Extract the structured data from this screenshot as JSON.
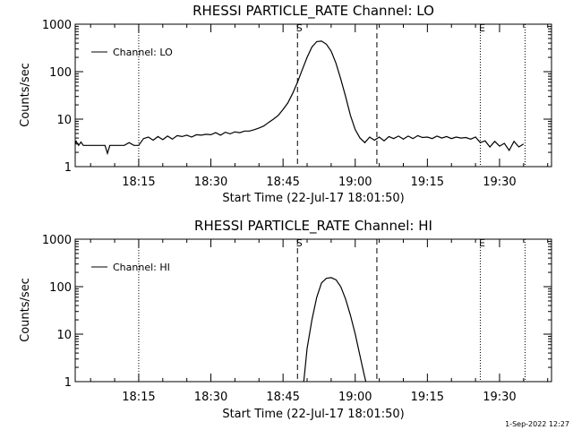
{
  "chart_data": [
    {
      "type": "line",
      "title": "RHESSI PARTICLE_RATE Channel: LO",
      "xlabel": "Start Time (22-Jul-17 18:01:50)",
      "ylabel": "Counts/sec",
      "y_scale": "log",
      "ylim": [
        1,
        1000
      ],
      "y_ticks": [
        1,
        10,
        100,
        1000
      ],
      "y_tick_labels": [
        "1",
        "10",
        "100",
        "1000"
      ],
      "x_tick_minutes": [
        15,
        30,
        45,
        60,
        75,
        90
      ],
      "x_tick_labels": [
        "18:15",
        "18:30",
        "18:45",
        "19:00",
        "19:15",
        "19:30"
      ],
      "legend": "top-left",
      "series": [
        {
          "name": "Channel: LO",
          "x_minutes": [
            1.8,
            2,
            2.5,
            3,
            3.5,
            4,
            5,
            6,
            7,
            8,
            8.5,
            9,
            10,
            11,
            12,
            13,
            14,
            15,
            16,
            17,
            18,
            19,
            20,
            21,
            22,
            23,
            24,
            25,
            26,
            27,
            28,
            29,
            30,
            31,
            32,
            33,
            34,
            35,
            36,
            37,
            38,
            39,
            40,
            41,
            42,
            43,
            44,
            45,
            46,
            47,
            48,
            49,
            50,
            51,
            52,
            53,
            54,
            55,
            56,
            57,
            58,
            59,
            60,
            61,
            62,
            63,
            64,
            65,
            66,
            67,
            68,
            69,
            70,
            71,
            72,
            73,
            74,
            75,
            76,
            77,
            78,
            79,
            80,
            81,
            82,
            83,
            84,
            85,
            86,
            87,
            88,
            89,
            90,
            91,
            92,
            93,
            94,
            95
          ],
          "values": [
            3,
            3.4,
            2.8,
            3.3,
            2.8,
            2.8,
            2.8,
            2.8,
            2.8,
            2.8,
            1.9,
            2.8,
            2.8,
            2.8,
            2.8,
            3.2,
            2.8,
            2.8,
            3.9,
            4.2,
            3.6,
            4.3,
            3.7,
            4.4,
            3.8,
            4.5,
            4.3,
            4.6,
            4.2,
            4.7,
            4.6,
            4.8,
            4.7,
            5.2,
            4.6,
            5.3,
            4.9,
            5.4,
            5.2,
            5.6,
            5.6,
            6,
            6.5,
            7.2,
            8.5,
            10,
            12,
            16,
            22,
            35,
            60,
            110,
            200,
            330,
            430,
            440,
            380,
            270,
            150,
            70,
            30,
            12,
            6,
            4,
            3.2,
            4.2,
            3.6,
            4.2,
            3.5,
            4.3,
            3.9,
            4.4,
            3.8,
            4.4,
            3.9,
            4.5,
            4.1,
            4.2,
            3.9,
            4.4,
            4,
            4.3,
            3.9,
            4.2,
            4,
            4.1,
            3.8,
            4.2,
            3.2,
            3.5,
            2.6,
            3.4,
            2.7,
            3.1,
            2.2,
            3.4,
            2.6,
            3
          ]
        }
      ],
      "vlines": [
        {
          "minute": 15.0,
          "style": "dotted",
          "label": ""
        },
        {
          "minute": 48.0,
          "style": "dashed",
          "label": "S"
        },
        {
          "minute": 64.5,
          "style": "dashed",
          "label": ""
        },
        {
          "minute": 86.0,
          "style": "dotted",
          "label": "E"
        },
        {
          "minute": 95.3,
          "style": "dotted",
          "label": ""
        }
      ]
    },
    {
      "type": "line",
      "title": "RHESSI PARTICLE_RATE Channel: HI",
      "xlabel": "Start Time (22-Jul-17 18:01:50)",
      "ylabel": "Counts/sec",
      "y_scale": "log",
      "ylim": [
        1,
        1000
      ],
      "y_ticks": [
        1,
        10,
        100,
        1000
      ],
      "y_tick_labels": [
        "1",
        "10",
        "100",
        "1000"
      ],
      "x_tick_minutes": [
        15,
        30,
        45,
        60,
        75,
        90
      ],
      "x_tick_labels": [
        "18:15",
        "18:30",
        "18:45",
        "19:00",
        "19:15",
        "19:30"
      ],
      "legend": "top-left",
      "series": [
        {
          "name": "Channel: HI",
          "x_minutes": [
            49.3,
            49.6,
            50,
            51,
            52,
            53,
            54,
            55,
            56,
            57,
            58,
            59,
            60,
            61,
            61.8,
            62.2
          ],
          "values": [
            1,
            2,
            5,
            20,
            60,
            120,
            150,
            155,
            140,
            100,
            55,
            25,
            10,
            3.5,
            1.5,
            1
          ]
        }
      ],
      "vlines": [
        {
          "minute": 15.0,
          "style": "dotted",
          "label": ""
        },
        {
          "minute": 48.0,
          "style": "dashed",
          "label": "S"
        },
        {
          "minute": 64.5,
          "style": "dashed",
          "label": ""
        },
        {
          "minute": 86.0,
          "style": "dotted",
          "label": "E"
        },
        {
          "minute": 95.3,
          "style": "dotted",
          "label": ""
        }
      ]
    }
  ],
  "footer_timestamp": "1-Sep-2022 12:27"
}
